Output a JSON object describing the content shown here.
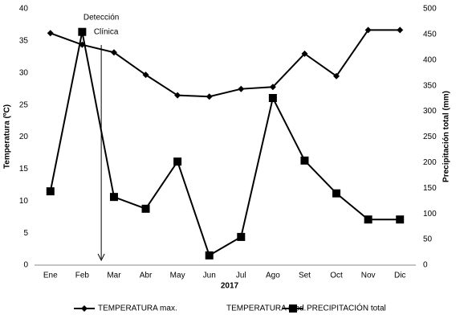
{
  "chart_data": {
    "type": "line",
    "categories": [
      "Ene",
      "Feb",
      "Mar",
      "Abr",
      "May",
      "Jun",
      "Jul",
      "Ago",
      "Set",
      "Oct",
      "Nov",
      "Dic"
    ],
    "xlabel": "2017",
    "ylabel": "Temperatura (ºC)",
    "y2label": "Precipitación total (mm)",
    "ylim": [
      0,
      40
    ],
    "yticks": [
      0,
      5,
      10,
      15,
      20,
      25,
      30,
      35,
      40
    ],
    "y2lim": [
      0,
      500
    ],
    "y2ticks": [
      0,
      50,
      100,
      150,
      200,
      250,
      300,
      350,
      400,
      450,
      500
    ],
    "annotation_lines": [
      "Detección",
      "Clínica"
    ],
    "legend": "bottom",
    "series": [
      {
        "name": "TEMPERATURA max.",
        "color": "#000000",
        "marker": "diamond",
        "values": [
          36.2,
          34.4,
          33.2,
          29.7,
          26.5,
          26.3,
          27.5,
          27.8,
          33.0,
          29.5,
          36.7,
          36.7
        ]
      },
      {
        "name": "TEMPERATURA med.",
        "color": "none",
        "marker": "none",
        "values": [
          null,
          null,
          null,
          null,
          null,
          null,
          null,
          null,
          null,
          null,
          null,
          null
        ]
      },
      {
        "name": "PRECIPITACIÓN total",
        "color": "#000000",
        "marker": "square",
        "axis": "y2",
        "values": [
          144,
          455,
          133,
          110,
          202,
          19,
          55,
          326,
          204,
          140,
          89,
          89
        ]
      }
    ]
  }
}
